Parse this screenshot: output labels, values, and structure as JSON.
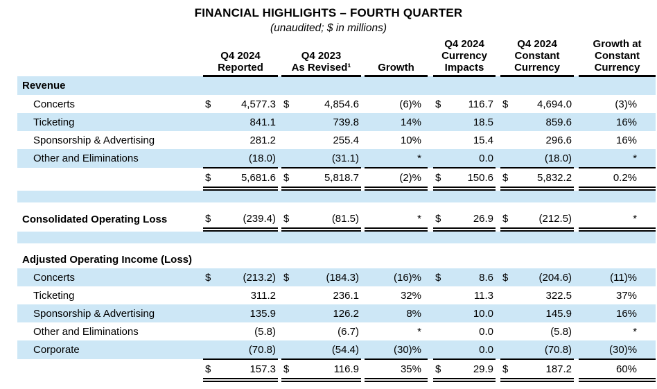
{
  "title": "FINANCIAL HIGHLIGHTS – FOURTH QUARTER",
  "subtitle": "(unaudited; $ in millions)",
  "colors": {
    "row_highlight": "#cde7f6",
    "text": "#000000",
    "rule": "#000000"
  },
  "headers": {
    "reported": [
      "Q4 2024",
      "Reported"
    ],
    "revised": [
      "Q4 2023",
      "As Revised¹"
    ],
    "growth": [
      "Growth"
    ],
    "currency_impacts": [
      "Q4 2024",
      "Currency",
      "Impacts"
    ],
    "constant_currency": [
      "Q4 2024",
      "Constant",
      "Currency"
    ],
    "growth_constant_currency": [
      "Growth at",
      "Constant",
      "Currency"
    ]
  },
  "table": {
    "rows": [
      {
        "name": "revenue-section",
        "label": "Revenue",
        "bold": true,
        "bg": "blue"
      },
      {
        "name": "revenue-concerts",
        "label": "Concerts",
        "indent": true,
        "bg": "white",
        "cells": {
          "d1": "$",
          "v1": "4,577.3",
          "d2": "$",
          "v2": "4,854.6",
          "g": "(6)%",
          "d3": "$",
          "v3": "116.7",
          "d4": "$",
          "v4": "4,694.0",
          "gcc": "(3)%"
        }
      },
      {
        "name": "revenue-ticketing",
        "label": "Ticketing",
        "indent": true,
        "bg": "blue",
        "cells": {
          "v1": "841.1",
          "v2": "739.8",
          "g": "14%",
          "v3": "18.5",
          "v4": "859.6",
          "gcc": "16%"
        }
      },
      {
        "name": "revenue-sponsorship-advertising",
        "label": "Sponsorship & Advertising",
        "indent": true,
        "bg": "white",
        "cells": {
          "v1": "281.2",
          "v2": "255.4",
          "g": "10%",
          "v3": "15.4",
          "v4": "296.6",
          "gcc": "16%"
        }
      },
      {
        "name": "revenue-other-and-eliminations",
        "label": "Other and Eliminations",
        "indent": true,
        "bg": "blue",
        "cells": {
          "v1": "(18.0)",
          "v2": "(31.1)",
          "g": "*",
          "v3": "0.0",
          "v4": "(18.0)",
          "gcc": "*"
        }
      },
      {
        "name": "revenue-total",
        "label": "",
        "bg": "white",
        "rule_top": true,
        "dbl": true,
        "cells": {
          "d1": "$",
          "v1": "5,681.6",
          "d2": "$",
          "v2": "5,818.7",
          "g": "(2)%",
          "d3": "$",
          "v3": "150.6",
          "d4": "$",
          "v4": "5,832.2",
          "gcc": "0.2%"
        }
      },
      {
        "name": "spacer",
        "spacer": "tall",
        "bg": "blue"
      },
      {
        "name": "spacer",
        "spacer": "short",
        "bg": "white"
      },
      {
        "name": "consolidated-operating-loss",
        "label": "Consolidated Operating Loss",
        "bold": true,
        "bg": "white",
        "dbl": true,
        "cells": {
          "d1": "$",
          "v1": "(239.4)",
          "d2": "$",
          "v2": "(81.5)",
          "g": "*",
          "d3": "$",
          "v3": "26.9",
          "d4": "$",
          "v4": "(212.5)",
          "gcc": "*"
        }
      },
      {
        "name": "spacer",
        "spacer": "tall",
        "bg": "blue"
      },
      {
        "name": "spacer",
        "spacer": "short",
        "bg": "white"
      },
      {
        "name": "adjusted-operating-income-loss-section",
        "label": "Adjusted Operating Income (Loss)",
        "bold": true,
        "bg": "white"
      },
      {
        "name": "adjusted-concerts",
        "label": "Concerts",
        "indent": true,
        "bg": "blue",
        "cells": {
          "d1": "$",
          "v1": "(213.2)",
          "d2": "$",
          "v2": "(184.3)",
          "g": "(16)%",
          "d3": "$",
          "v3": "8.6",
          "d4": "$",
          "v4": "(204.6)",
          "gcc": "(11)%"
        }
      },
      {
        "name": "adjusted-ticketing",
        "label": "Ticketing",
        "indent": true,
        "bg": "white",
        "cells": {
          "v1": "311.2",
          "v2": "236.1",
          "g": "32%",
          "v3": "11.3",
          "v4": "322.5",
          "gcc": "37%"
        }
      },
      {
        "name": "adjusted-sponsorship-advertising",
        "label": "Sponsorship & Advertising",
        "indent": true,
        "bg": "blue",
        "cells": {
          "v1": "135.9",
          "v2": "126.2",
          "g": "8%",
          "v3": "10.0",
          "v4": "145.9",
          "gcc": "16%"
        }
      },
      {
        "name": "adjusted-other-and-eliminations",
        "label": "Other and Eliminations",
        "indent": true,
        "bg": "white",
        "cells": {
          "v1": "(5.8)",
          "v2": "(6.7)",
          "g": "*",
          "v3": "0.0",
          "v4": "(5.8)",
          "gcc": "*"
        }
      },
      {
        "name": "adjusted-corporate",
        "label": "Corporate",
        "indent": true,
        "bg": "blue",
        "cells": {
          "v1": "(70.8)",
          "v2": "(54.4)",
          "g": "(30)%",
          "v3": "0.0",
          "v4": "(70.8)",
          "gcc": "(30)%"
        }
      },
      {
        "name": "adjusted-total",
        "label": "",
        "bg": "white",
        "rule_top": true,
        "dbl": true,
        "cells": {
          "d1": "$",
          "v1": "157.3",
          "d2": "$",
          "v2": "116.9",
          "g": "35%",
          "d3": "$",
          "v3": "29.9",
          "d4": "$",
          "v4": "187.2",
          "gcc": "60%"
        }
      }
    ]
  }
}
